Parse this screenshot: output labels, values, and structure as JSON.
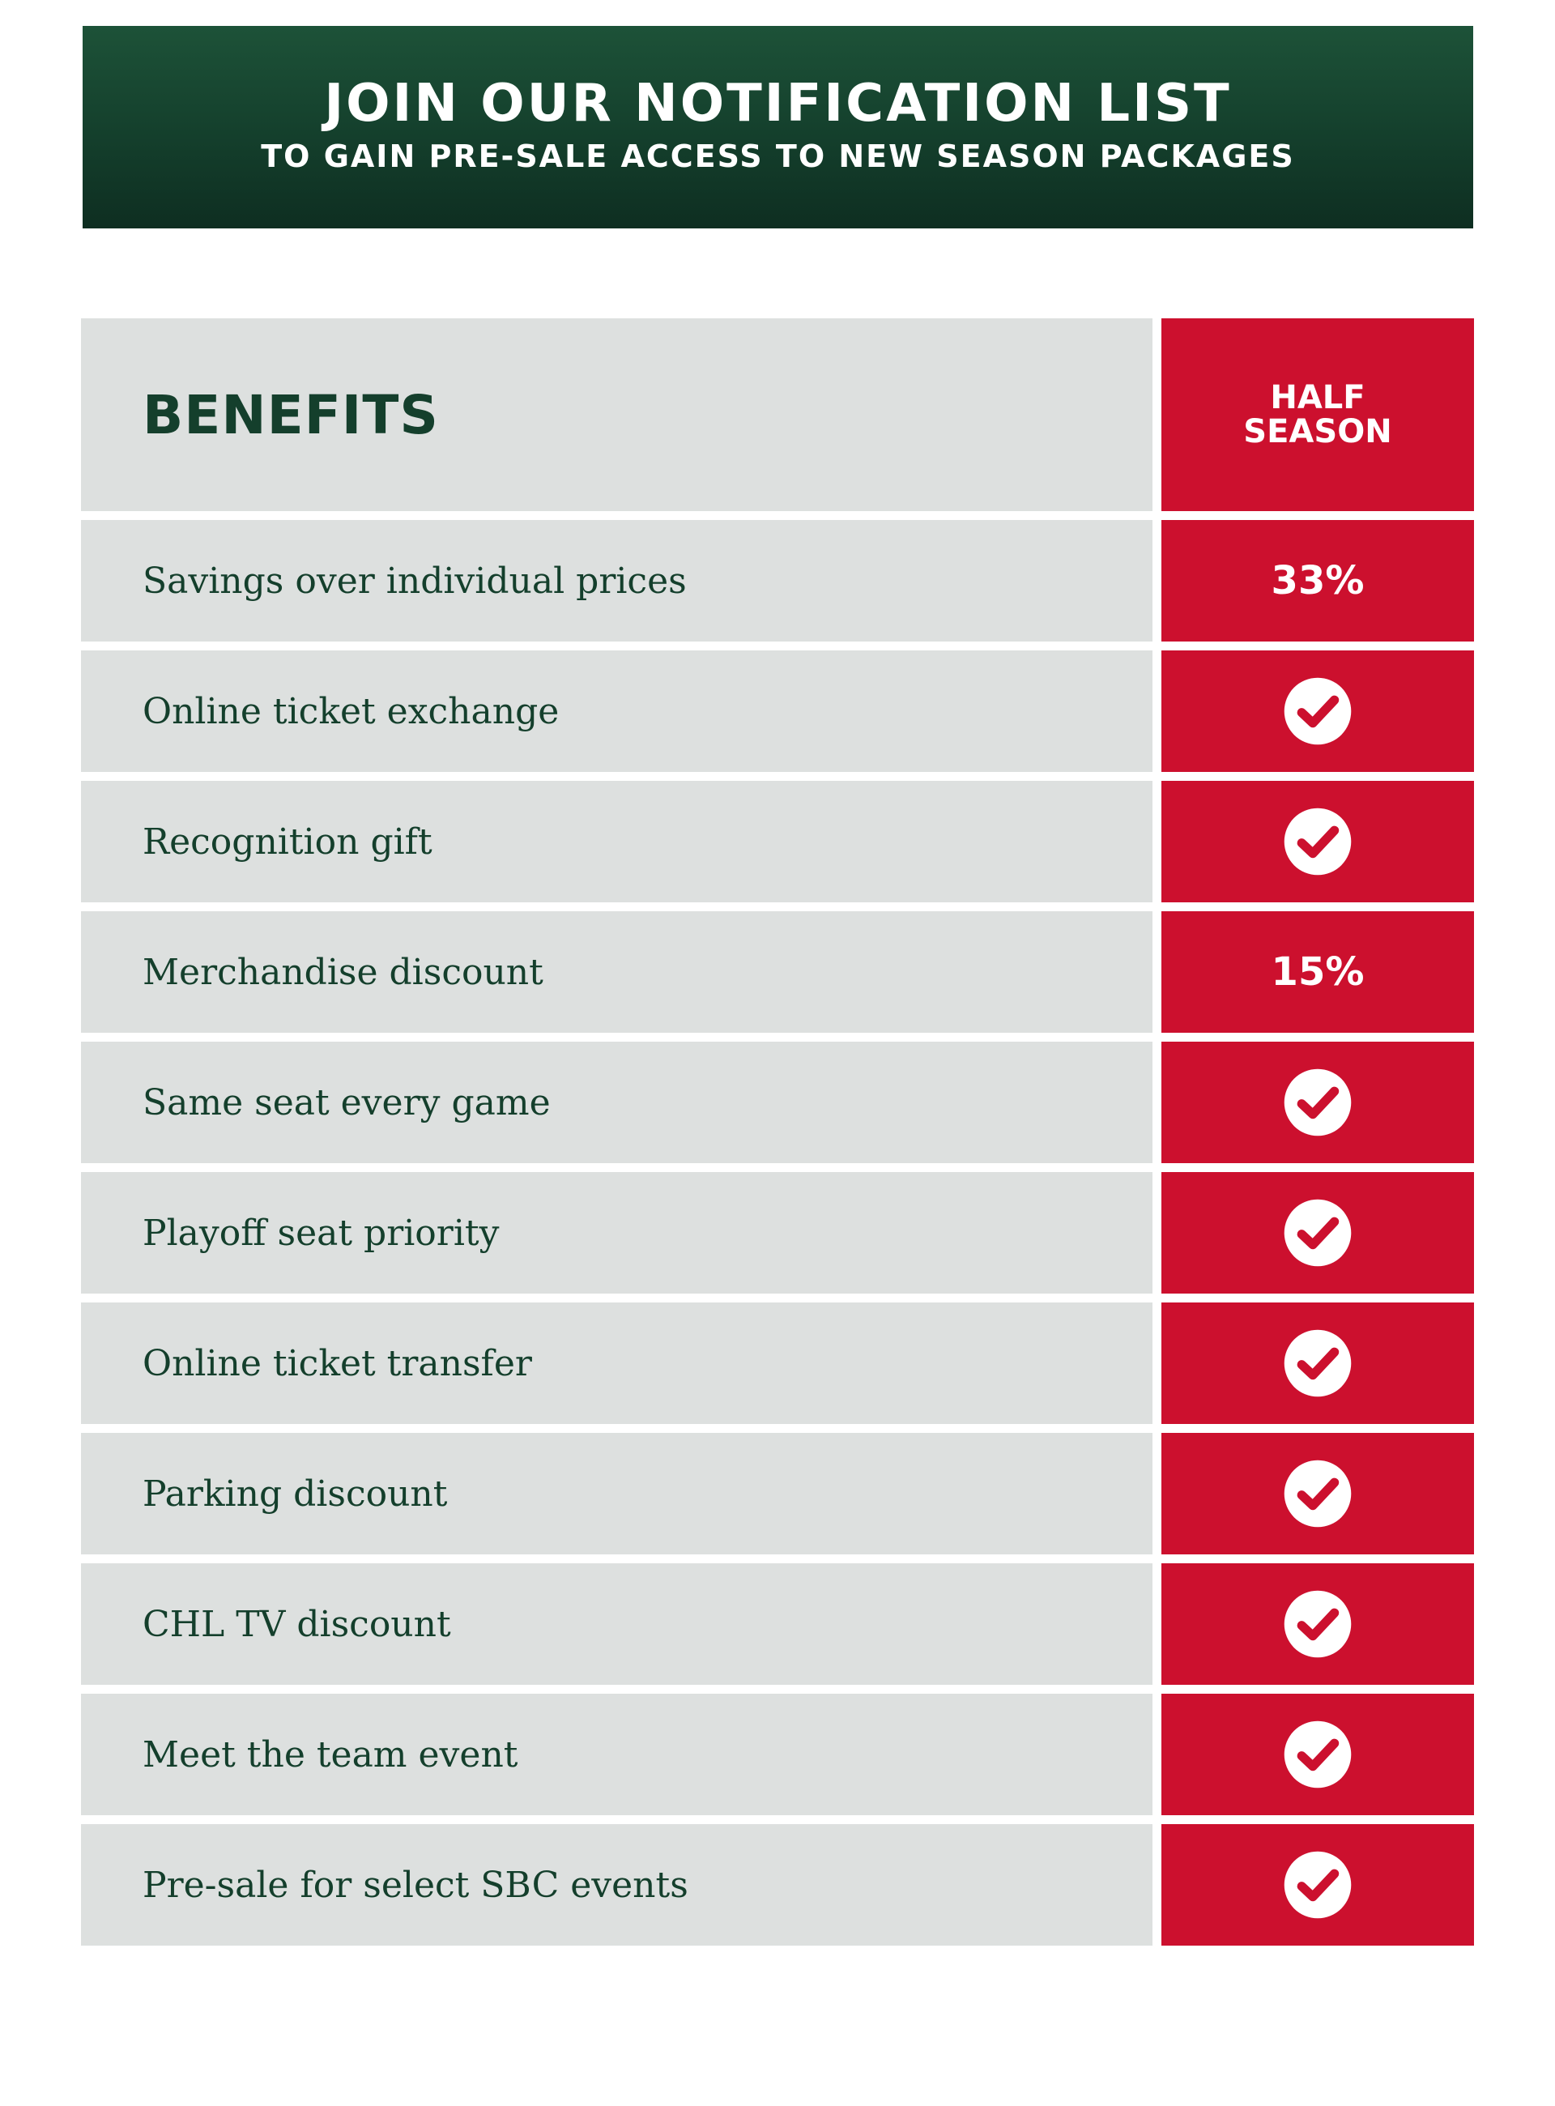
{
  "banner": {
    "title": "JOIN OUR NOTIFICATION LIST",
    "subtitle": "TO GAIN PRE-SALE ACCESS TO NEW SEASON PACKAGES"
  },
  "table": {
    "heading": "BENEFITS",
    "plan": "HALF\nSEASON",
    "rows": [
      {
        "label": "Savings over individual prices",
        "type": "text",
        "value": "33%"
      },
      {
        "label": "Online ticket exchange",
        "type": "check",
        "value": "check-circle-icon"
      },
      {
        "label": "Recognition gift",
        "type": "check",
        "value": "check-circle-icon"
      },
      {
        "label": "Merchandise discount",
        "type": "text",
        "value": "15%"
      },
      {
        "label": "Same seat every game",
        "type": "check",
        "value": "check-circle-icon"
      },
      {
        "label": "Playoff seat priority",
        "type": "check",
        "value": "check-circle-icon"
      },
      {
        "label": "Online ticket transfer",
        "type": "check",
        "value": "check-circle-icon"
      },
      {
        "label": "Parking discount",
        "type": "check",
        "value": "check-circle-icon"
      },
      {
        "label": "CHL TV discount",
        "type": "check",
        "value": "check-circle-icon"
      },
      {
        "label": "Meet the team event",
        "type": "check",
        "value": "check-circle-icon"
      },
      {
        "label": "Pre-sale for select SBC events",
        "type": "check",
        "value": "check-circle-icon"
      }
    ]
  },
  "colors": {
    "dark_green": "#143f2c",
    "red": "#cc102e",
    "label_bg": "#dde0df"
  }
}
